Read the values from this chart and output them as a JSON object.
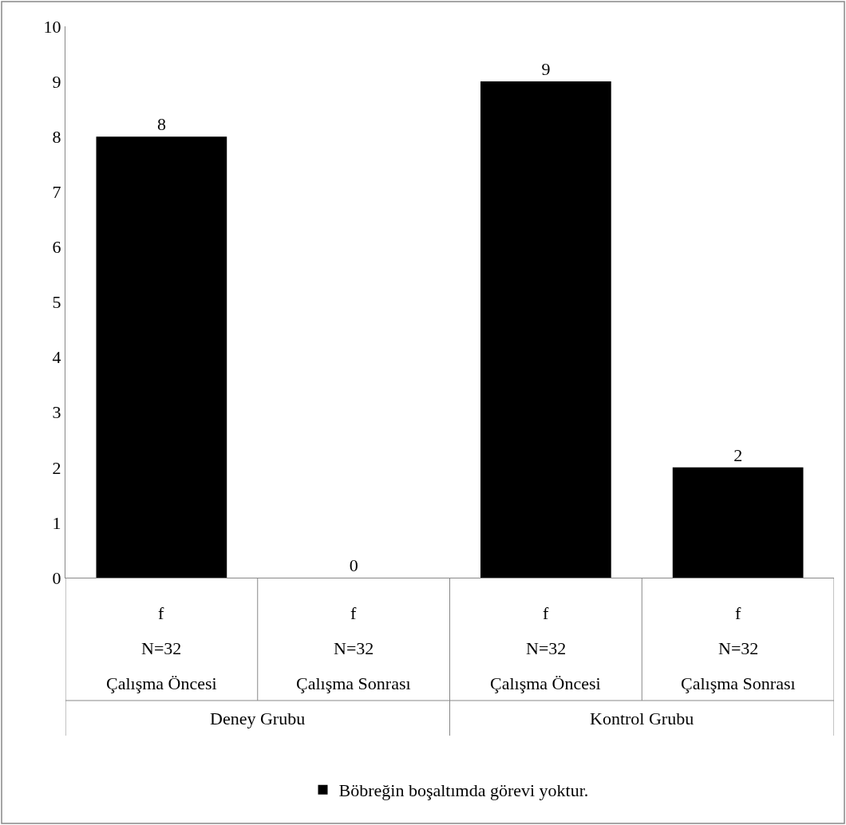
{
  "chart_data": {
    "type": "bar",
    "categories": [
      "f\nN=32\nÇalışma Öncesi",
      "f\nN=32\nÇalışma Sonrası",
      "f\nN=32\nÇalışma Öncesi",
      "f\nN=32\nÇalışma Sonrası"
    ],
    "series": [
      {
        "name": "Böbreğin boşaltımda görevi yoktur.",
        "color": "#000000",
        "values": [
          8,
          0,
          9,
          2
        ]
      }
    ],
    "ylim": [
      0,
      10
    ],
    "yticks": [
      0,
      1,
      2,
      3,
      4,
      5,
      6,
      7,
      8,
      9,
      10
    ],
    "data_labels": true,
    "legend": "bottom",
    "annotations": [
      "Deney Grubu",
      "Kontrol Grubu"
    ]
  }
}
